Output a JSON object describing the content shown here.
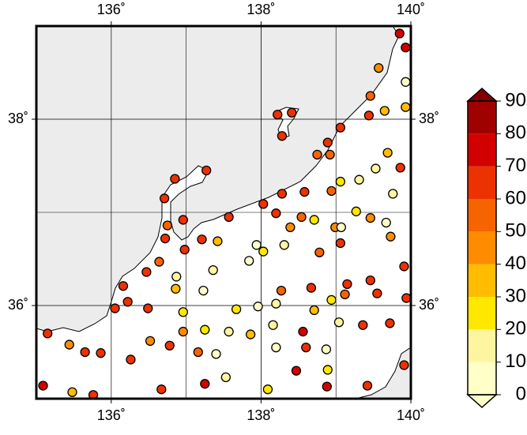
{
  "chart_data": {
    "type": "map",
    "xlim": [
      135,
      140
    ],
    "ylim": [
      35,
      39
    ],
    "xticks": [
      {
        "value": 136,
        "label": "136˚"
      },
      {
        "value": 138,
        "label": "138˚"
      },
      {
        "value": 140,
        "label": "140˚"
      }
    ],
    "yticks": [
      {
        "value": 36,
        "label": "36˚"
      },
      {
        "value": 38,
        "label": "38˚"
      }
    ],
    "grid": true,
    "points": {
      "lon": [
        139.85,
        139.93,
        139.57,
        139.93,
        139.46,
        139.93,
        139.65,
        139.44,
        138.22,
        138.41,
        138.28,
        139.06,
        138.89,
        138.92,
        138.75,
        139.69,
        139.86,
        139.53,
        139.31,
        139.06,
        139.76,
        138.94,
        138.58,
        138.28,
        138.03,
        137.57,
        137.27,
        136.85,
        136.71,
        136.96,
        136.75,
        136.72,
        137.21,
        137.42,
        136.98,
        138.2,
        138.39,
        138.54,
        138.71,
        138.99,
        139.07,
        139.27,
        139.46,
        139.67,
        139.73,
        138.78,
        139.06,
        138.31,
        137.94,
        137.84,
        138.03,
        137.36,
        136.87,
        136.64,
        136.47,
        136.16,
        136.22,
        136.05,
        136.49,
        136.86,
        137.23,
        137.67,
        137.96,
        138.2,
        138.71,
        138.94,
        139.12,
        139.55,
        139.94,
        139.91,
        139.46,
        139.15,
        138.67,
        138.27,
        136.96,
        136.96,
        137.25,
        137.57,
        137.86,
        137.4,
        137.16,
        136.78,
        136.52,
        136.26,
        135.86,
        135.65,
        135.44,
        135.15,
        135.09,
        135.48,
        135.76,
        136.67,
        137.25,
        137.53,
        138.09,
        138.47,
        138.88,
        139.42,
        139.91,
        139.72,
        139.36,
        139.04,
        138.87,
        138.6,
        138.56,
        138.2,
        138.16,
        138.89
      ],
      "lat": [
        38.92,
        38.77,
        38.55,
        38.4,
        38.25,
        38.13,
        38.09,
        38.04,
        38.05,
        38.07,
        37.82,
        37.91,
        37.75,
        37.62,
        37.62,
        37.64,
        37.48,
        37.47,
        37.35,
        37.33,
        37.2,
        37.23,
        37.22,
        37.2,
        37.09,
        36.95,
        37.45,
        37.36,
        37.15,
        36.92,
        36.86,
        36.72,
        36.71,
        36.69,
        36.6,
        36.99,
        36.84,
        36.95,
        36.92,
        36.84,
        36.84,
        37.01,
        36.94,
        36.89,
        36.74,
        36.57,
        36.67,
        36.65,
        36.65,
        36.48,
        36.58,
        36.38,
        36.31,
        36.47,
        36.36,
        36.21,
        36.04,
        35.97,
        35.97,
        36.18,
        36.16,
        35.96,
        35.99,
        36.02,
        35.95,
        36.06,
        36.12,
        36.13,
        36.08,
        36.42,
        36.27,
        36.23,
        36.19,
        36.16,
        35.93,
        35.72,
        35.74,
        35.72,
        35.69,
        35.48,
        35.5,
        35.57,
        35.62,
        35.42,
        35.49,
        35.5,
        35.58,
        35.7,
        35.14,
        35.07,
        35.04,
        35.1,
        35.16,
        35.23,
        35.1,
        35.3,
        35.13,
        35.14,
        35.36,
        35.81,
        35.79,
        35.82,
        35.53,
        35.55,
        35.72,
        35.55,
        35.79,
        35.31
      ],
      "values": [
        75,
        70,
        40,
        5,
        55,
        35,
        35,
        60,
        65,
        65,
        60,
        60,
        65,
        55,
        55,
        35,
        60,
        15,
        15,
        25,
        10,
        50,
        65,
        60,
        60,
        60,
        65,
        65,
        60,
        60,
        55,
        60,
        60,
        35,
        60,
        60,
        40,
        50,
        25,
        40,
        5,
        20,
        45,
        5,
        45,
        50,
        60,
        10,
        5,
        5,
        25,
        10,
        10,
        55,
        65,
        65,
        65,
        65,
        60,
        30,
        5,
        20,
        5,
        15,
        30,
        25,
        55,
        60,
        60,
        65,
        60,
        60,
        60,
        50,
        25,
        40,
        20,
        15,
        30,
        5,
        55,
        65,
        45,
        60,
        65,
        60,
        40,
        60,
        70,
        30,
        65,
        65,
        70,
        10,
        20,
        70,
        70,
        60,
        65,
        65,
        60,
        15,
        5,
        65,
        70,
        5,
        15,
        25
      ]
    },
    "colorbar": {
      "lim": [
        0,
        90
      ],
      "ticks": [
        0,
        10,
        20,
        30,
        40,
        50,
        60,
        70,
        80,
        90
      ],
      "colors": [
        "#ffffc8",
        "#fff5a0",
        "#ffe800",
        "#ffbc00",
        "#ff8c00",
        "#f56400",
        "#eb3200",
        "#d20000",
        "#a00000"
      ],
      "over_color": "#820000",
      "under_color": "#ffffc8"
    }
  }
}
